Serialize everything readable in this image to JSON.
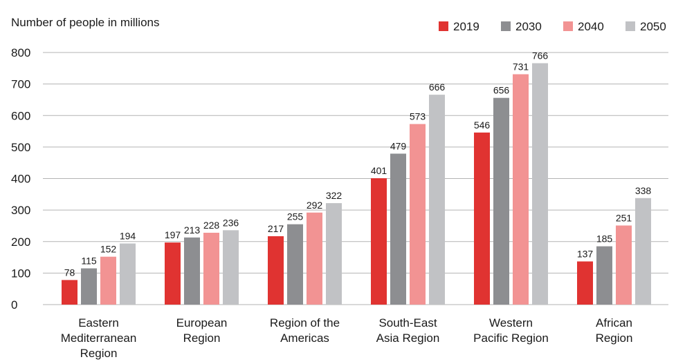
{
  "chart_data": {
    "type": "bar",
    "ylabel": "Number of people in millions",
    "ylim": [
      0,
      800
    ],
    "yticks": [
      0,
      100,
      200,
      300,
      400,
      500,
      600,
      700,
      800
    ],
    "grid": true,
    "legend_position": "top-right",
    "categories": [
      [
        "Eastern",
        "Mediterranean",
        "Region"
      ],
      [
        "European",
        "Region"
      ],
      [
        "Region of the",
        "Americas"
      ],
      [
        "South-East",
        "Asia Region"
      ],
      [
        "Western",
        "Pacific Region"
      ],
      [
        "African",
        "Region"
      ]
    ],
    "series": [
      {
        "name": "2019",
        "color": "#e03331",
        "values": [
          78,
          197,
          217,
          401,
          546,
          137
        ]
      },
      {
        "name": "2030",
        "color": "#8d8e91",
        "values": [
          115,
          213,
          255,
          479,
          656,
          185
        ]
      },
      {
        "name": "2040",
        "color": "#f29393",
        "values": [
          152,
          228,
          292,
          573,
          731,
          251
        ]
      },
      {
        "name": "2050",
        "color": "#c1c2c5",
        "values": [
          194,
          236,
          322,
          666,
          766,
          338
        ]
      }
    ]
  }
}
